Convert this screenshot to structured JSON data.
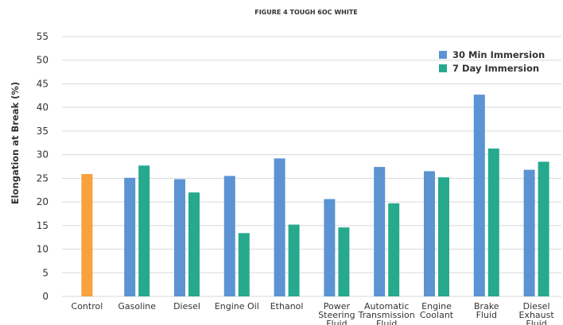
{
  "chart_data": {
    "type": "bar",
    "title": "FIGURE 4 TOUGH 6OC WHITE",
    "ylabel": "Elongation at Break (%)",
    "xlabel": "",
    "ylim": [
      0,
      55
    ],
    "yticks": [
      0,
      5,
      10,
      15,
      20,
      25,
      30,
      35,
      40,
      45,
      50,
      55
    ],
    "grid": true,
    "legend_position": "top-right",
    "categories": [
      [
        "Control"
      ],
      [
        "Gasoline"
      ],
      [
        "Diesel"
      ],
      [
        "Engine Oil"
      ],
      [
        "Ethanol"
      ],
      [
        "Power",
        "Steering",
        "Fluid"
      ],
      [
        "Automatic",
        "Transmission",
        "Fluid"
      ],
      [
        "Engine",
        "Coolant"
      ],
      [
        "Brake",
        "Fluid"
      ],
      [
        "Diesel",
        "Exhaust",
        "Fluid"
      ]
    ],
    "control": {
      "value": 25.9,
      "color": "#f9a03f"
    },
    "series": [
      {
        "name": "30 Min Immersion",
        "color": "#5b93d3",
        "values": [
          null,
          25.1,
          24.8,
          25.5,
          29.2,
          20.6,
          27.4,
          26.5,
          42.7,
          26.8
        ]
      },
      {
        "name": "7 Day Immersion",
        "color": "#26a98d",
        "values": [
          null,
          27.7,
          22.0,
          13.4,
          15.2,
          14.6,
          19.7,
          25.2,
          31.3,
          28.5
        ]
      }
    ]
  }
}
